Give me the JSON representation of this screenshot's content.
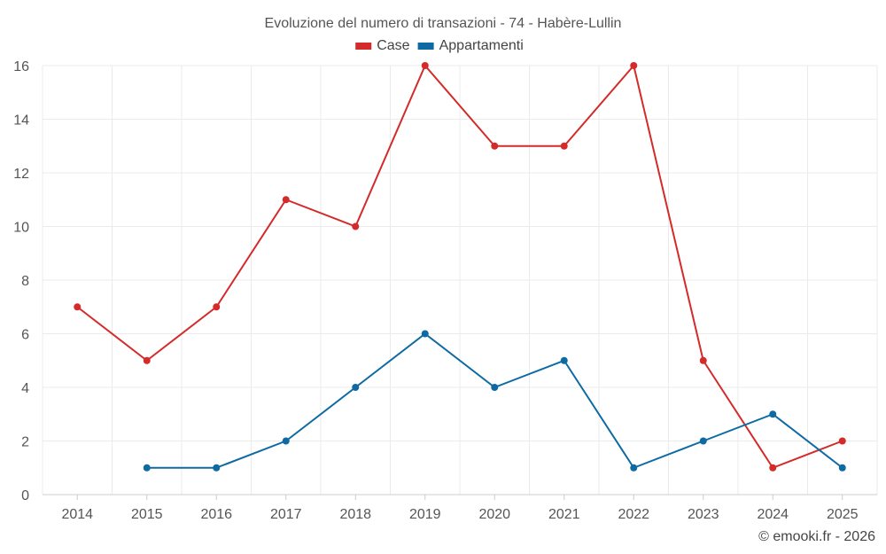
{
  "chart_data": {
    "type": "line",
    "title": "Evoluzione del numero di transazioni - 74 - Habère-Lullin",
    "categories": [
      "2014",
      "2015",
      "2016",
      "2017",
      "2018",
      "2019",
      "2020",
      "2021",
      "2022",
      "2023",
      "2024",
      "2025"
    ],
    "series": [
      {
        "name": "Case",
        "color": "#d42a2a",
        "values": [
          7,
          5,
          7,
          11,
          10,
          16,
          13,
          13,
          16,
          5,
          1,
          2
        ]
      },
      {
        "name": "Appartamenti",
        "color": "#0e6aa3",
        "values": [
          null,
          1,
          1,
          2,
          4,
          6,
          4,
          5,
          1,
          2,
          3,
          1
        ]
      }
    ],
    "ylim": [
      0,
      16
    ],
    "yticks": [
      0,
      2,
      4,
      6,
      8,
      10,
      12,
      14,
      16
    ],
    "grid": true,
    "legend_position": "top-center"
  },
  "footer": "© emooki.fr - 2026"
}
